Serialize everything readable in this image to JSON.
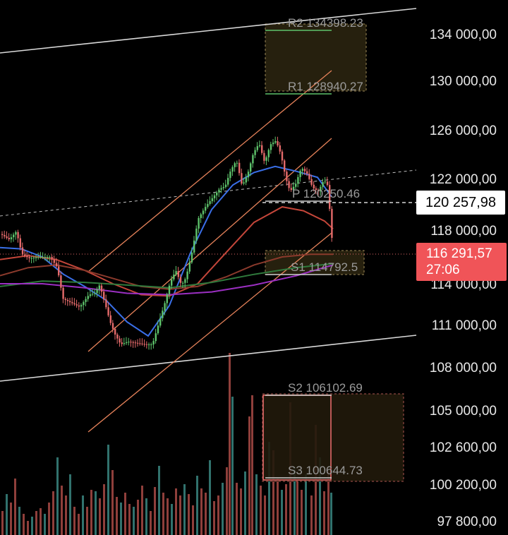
{
  "chart_data": {
    "type": "candlestick",
    "y_axis": {
      "tick_labels": [
        "134 000,00",
        "130 000,00",
        "126 000,00",
        "122 000,00",
        "118 000,00",
        "114 000,00",
        "111 000,00",
        "108 000,00",
        "105 000,00",
        "102 600,00",
        "100 200,00",
        "97 800,00"
      ],
      "tick_values": [
        134000,
        130000,
        126000,
        122000,
        118000,
        114000,
        111000,
        108000,
        105000,
        102600,
        100200,
        97800
      ]
    },
    "price_tags": {
      "last_price": "120 257,98",
      "current_price": "116 291,57",
      "countdown": "27:06"
    },
    "pivot_levels": [
      {
        "label": "R2",
        "value_text": "134398.23",
        "value": 134398.23
      },
      {
        "label": "R1",
        "value_text": "128940.27",
        "value": 128940.27
      },
      {
        "label": "P",
        "value_text": "120250.46",
        "value": 120250.46
      },
      {
        "label": "S1",
        "value_text": "114792.5",
        "value": 114792.5
      },
      {
        "label": "S2",
        "value_text": "106102.69",
        "value": 106102.69
      },
      {
        "label": "S3",
        "value_text": "100644.73",
        "value": 100644.73
      }
    ],
    "price_path": [
      [
        0,
        117700
      ],
      [
        12,
        117300
      ],
      [
        22,
        117900
      ],
      [
        30,
        116200
      ],
      [
        40,
        115900
      ],
      [
        55,
        116000
      ],
      [
        70,
        116000
      ],
      [
        80,
        115200
      ],
      [
        88,
        112900
      ],
      [
        100,
        112600
      ],
      [
        112,
        112300
      ],
      [
        125,
        113200
      ],
      [
        133,
        113300
      ],
      [
        140,
        113900
      ],
      [
        148,
        112500
      ],
      [
        155,
        111200
      ],
      [
        162,
        110300
      ],
      [
        170,
        109600
      ],
      [
        180,
        109800
      ],
      [
        192,
        109700
      ],
      [
        205,
        109600
      ],
      [
        215,
        109600
      ],
      [
        222,
        110800
      ],
      [
        232,
        112500
      ],
      [
        240,
        114100
      ],
      [
        248,
        115000
      ],
      [
        256,
        113900
      ],
      [
        262,
        114400
      ],
      [
        270,
        116100
      ],
      [
        280,
        118900
      ],
      [
        290,
        119800
      ],
      [
        300,
        120500
      ],
      [
        310,
        121200
      ],
      [
        318,
        121400
      ],
      [
        326,
        122700
      ],
      [
        334,
        123500
      ],
      [
        342,
        121400
      ],
      [
        350,
        122400
      ],
      [
        358,
        124100
      ],
      [
        366,
        124900
      ],
      [
        374,
        123300
      ],
      [
        382,
        124800
      ],
      [
        390,
        125100
      ],
      [
        397,
        124000
      ],
      [
        404,
        122000
      ],
      [
        410,
        121000
      ],
      [
        418,
        121600
      ],
      [
        426,
        122900
      ],
      [
        434,
        122400
      ],
      [
        442,
        121300
      ],
      [
        450,
        121000
      ],
      [
        458,
        121900
      ],
      [
        464,
        121400
      ],
      [
        468,
        117900
      ],
      [
        472,
        116300
      ]
    ],
    "volume_path": [
      [
        2,
        34
      ],
      [
        8,
        58
      ],
      [
        14,
        46
      ],
      [
        20,
        80
      ],
      [
        26,
        40
      ],
      [
        32,
        30
      ],
      [
        38,
        20
      ],
      [
        44,
        26
      ],
      [
        50,
        34
      ],
      [
        56,
        38
      ],
      [
        62,
        30
      ],
      [
        68,
        46
      ],
      [
        74,
        62
      ],
      [
        80,
        110
      ],
      [
        86,
        70
      ],
      [
        92,
        56
      ],
      [
        98,
        86
      ],
      [
        104,
        40
      ],
      [
        110,
        30
      ],
      [
        116,
        56
      ],
      [
        122,
        40
      ],
      [
        128,
        64
      ],
      [
        134,
        62
      ],
      [
        140,
        52
      ],
      [
        146,
        72
      ],
      [
        152,
        128
      ],
      [
        158,
        92
      ],
      [
        164,
        54
      ],
      [
        170,
        46
      ],
      [
        176,
        60
      ],
      [
        182,
        44
      ],
      [
        188,
        40
      ],
      [
        194,
        50
      ],
      [
        200,
        70
      ],
      [
        206,
        52
      ],
      [
        212,
        34
      ],
      [
        218,
        68
      ],
      [
        224,
        98
      ],
      [
        230,
        60
      ],
      [
        236,
        52
      ],
      [
        242,
        44
      ],
      [
        248,
        66
      ],
      [
        254,
        56
      ],
      [
        260,
        72
      ],
      [
        266,
        58
      ],
      [
        272,
        42
      ],
      [
        278,
        84
      ],
      [
        284,
        66
      ],
      [
        290,
        60
      ],
      [
        296,
        106
      ],
      [
        302,
        48
      ],
      [
        308,
        56
      ],
      [
        314,
        74
      ],
      [
        320,
        96
      ],
      [
        324,
        258
      ],
      [
        328,
        196
      ],
      [
        334,
        74
      ],
      [
        340,
        66
      ],
      [
        346,
        90
      ],
      [
        352,
        168
      ],
      [
        356,
        198
      ],
      [
        362,
        86
      ],
      [
        368,
        70
      ],
      [
        374,
        56
      ],
      [
        380,
        132
      ],
      [
        386,
        120
      ],
      [
        392,
        80
      ],
      [
        398,
        64
      ],
      [
        404,
        72
      ],
      [
        410,
        188
      ],
      [
        416,
        96
      ],
      [
        420,
        78
      ],
      [
        426,
        64
      ],
      [
        432,
        86
      ],
      [
        440,
        56
      ],
      [
        446,
        156
      ],
      [
        452,
        110
      ],
      [
        458,
        62
      ],
      [
        464,
        90
      ],
      [
        468,
        60
      ]
    ],
    "moving_averages": [
      {
        "color": "#3a6fe8",
        "points": [
          [
            0,
            116700
          ],
          [
            30,
            116600
          ],
          [
            60,
            116000
          ],
          [
            90,
            114700
          ],
          [
            120,
            113800
          ],
          [
            150,
            112800
          ],
          [
            180,
            111200
          ],
          [
            210,
            110200
          ],
          [
            240,
            112400
          ],
          [
            270,
            116300
          ],
          [
            300,
            119600
          ],
          [
            330,
            121500
          ],
          [
            360,
            122500
          ],
          [
            390,
            123000
          ],
          [
            420,
            122600
          ],
          [
            450,
            122100
          ],
          [
            470,
            120600
          ]
        ]
      },
      {
        "color": "#c4463a",
        "points": [
          [
            0,
            115800
          ],
          [
            40,
            116100
          ],
          [
            80,
            115800
          ],
          [
            120,
            115000
          ],
          [
            160,
            114000
          ],
          [
            200,
            113200
          ],
          [
            240,
            113100
          ],
          [
            280,
            114000
          ],
          [
            320,
            116300
          ],
          [
            360,
            118600
          ],
          [
            400,
            119800
          ],
          [
            430,
            119500
          ],
          [
            460,
            118700
          ],
          [
            472,
            118100
          ]
        ]
      },
      {
        "color": "#8b3a2c",
        "points": [
          [
            0,
            114600
          ],
          [
            40,
            115200
          ],
          [
            80,
            115400
          ],
          [
            120,
            115000
          ],
          [
            160,
            114400
          ],
          [
            200,
            113800
          ],
          [
            240,
            113600
          ],
          [
            280,
            113800
          ],
          [
            320,
            114500
          ],
          [
            360,
            115400
          ],
          [
            400,
            116000
          ],
          [
            440,
            116200
          ],
          [
            472,
            116200
          ]
        ]
      },
      {
        "color": "#2f7a3c",
        "points": [
          [
            0,
            113800
          ],
          [
            60,
            114200
          ],
          [
            120,
            114100
          ],
          [
            180,
            113900
          ],
          [
            240,
            113700
          ],
          [
            300,
            114100
          ],
          [
            360,
            114700
          ],
          [
            420,
            115200
          ],
          [
            472,
            115500
          ]
        ]
      },
      {
        "color": "#9b2fc2",
        "points": [
          [
            0,
            114000
          ],
          [
            60,
            114000
          ],
          [
            120,
            113700
          ],
          [
            180,
            113300
          ],
          [
            240,
            113200
          ],
          [
            300,
            113400
          ],
          [
            360,
            113900
          ],
          [
            420,
            114600
          ],
          [
            472,
            115400
          ]
        ]
      }
    ],
    "colors": {
      "up": "#5ec36b",
      "down": "#e46a6a",
      "background": "#000000",
      "axis_text": "#e8e8e8",
      "channel": "#e6825a",
      "outer_channel": "#d8d8d8",
      "last_price_tag": "#ffffff",
      "current_price_tag": "#f05458"
    }
  }
}
